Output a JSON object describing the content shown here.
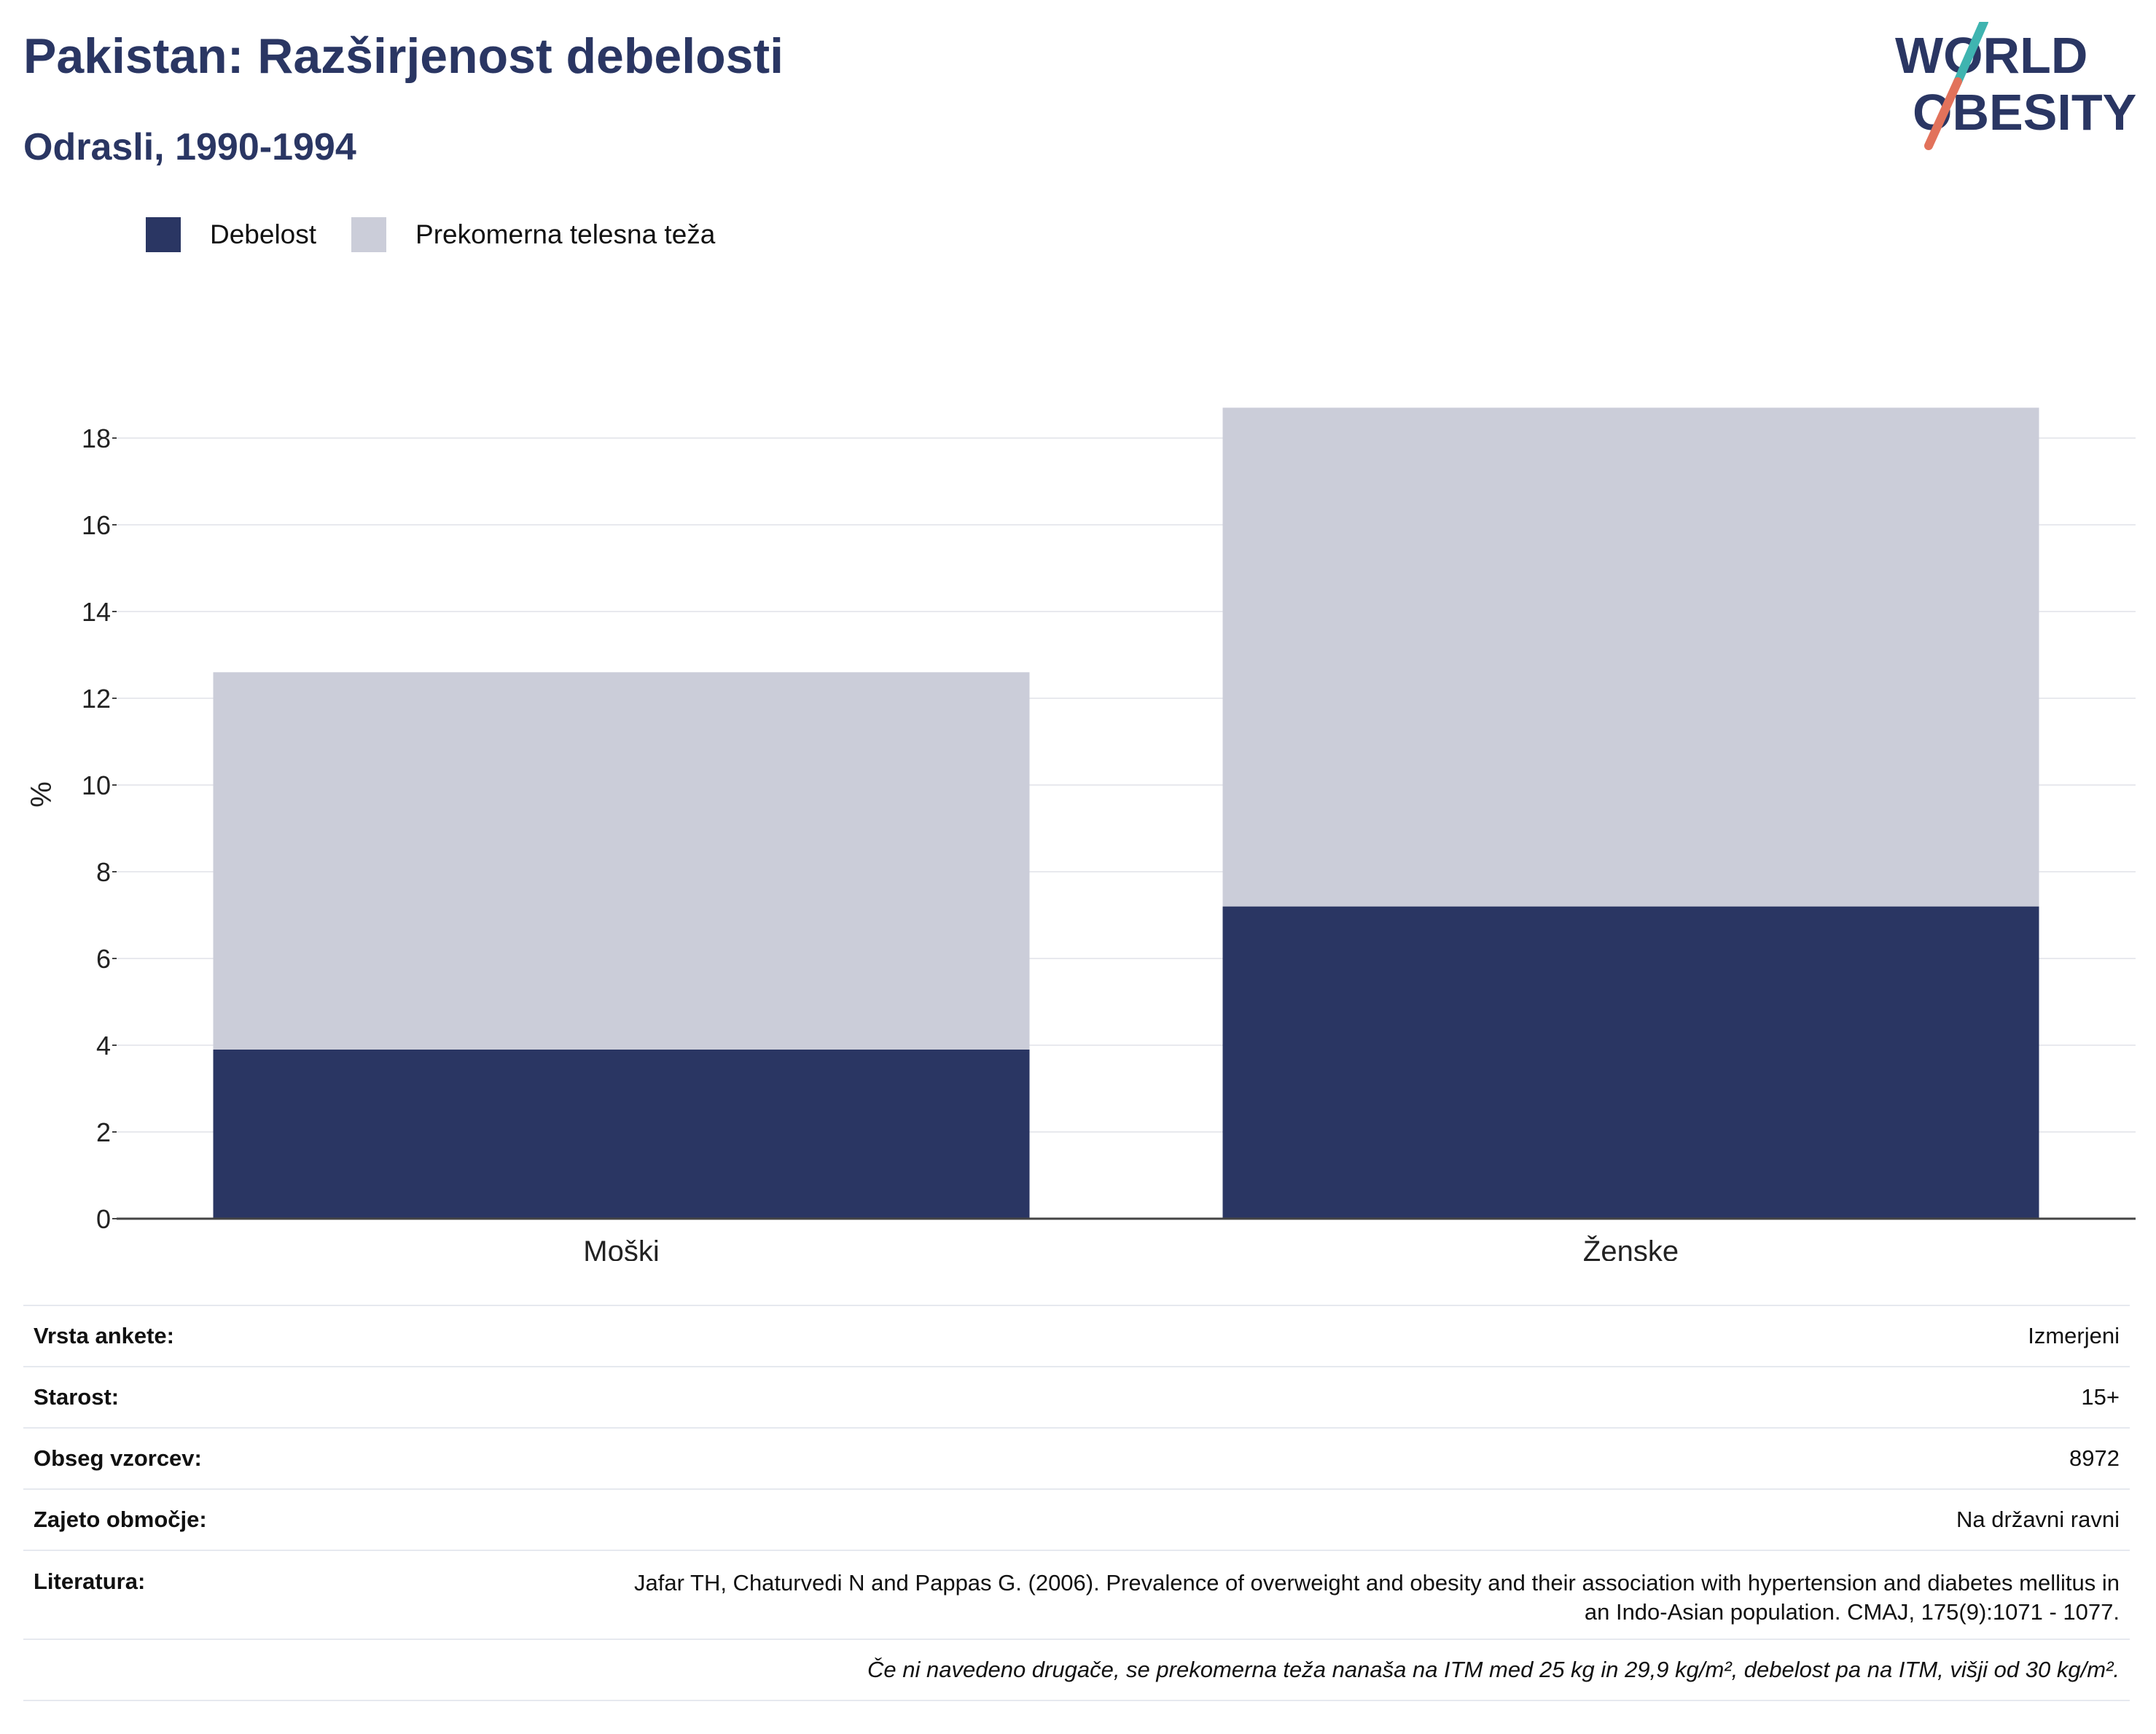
{
  "header": {
    "title": "Pakistan: Razširjenost debelosti",
    "subtitle": "Odrasli, 1990-1994"
  },
  "logo": {
    "line1": "WORLD",
    "line2": "OBESITY"
  },
  "colors": {
    "obesity": "#2a3663",
    "overweight": "#cbcdd9",
    "text": "#2a3663",
    "logo_teal": "#3fb4b0",
    "logo_coral": "#e2725b"
  },
  "legend": [
    {
      "label": "Debelost",
      "color": "#2a3663"
    },
    {
      "label": "Prekomerna telesna teža",
      "color": "#cbcdd9"
    }
  ],
  "chart_data": {
    "type": "bar",
    "stacked": true,
    "categories": [
      "Moški",
      "Ženske"
    ],
    "series": [
      {
        "name": "Debelost",
        "values": [
          3.9,
          7.2
        ]
      },
      {
        "name": "Prekomerna telesna teža",
        "values": [
          8.7,
          11.5
        ]
      }
    ],
    "totals": [
      12.6,
      18.7
    ],
    "ylabel": "%",
    "xlabel": "",
    "ylim": [
      0,
      19
    ],
    "yticks": [
      0,
      2,
      4,
      6,
      8,
      10,
      12,
      14,
      16,
      18
    ],
    "grid": true,
    "legend_position": "top-left"
  },
  "info": {
    "survey_type": {
      "label": "Vrsta ankete:",
      "value": "Izmerjeni"
    },
    "age": {
      "label": "Starost:",
      "value": "15+"
    },
    "sample_size": {
      "label": "Obseg vzorcev:",
      "value": "8972"
    },
    "area": {
      "label": "Zajeto območje:",
      "value": "Na državni ravni"
    },
    "reference": {
      "label": "Literatura:",
      "value": "Jafar TH, Chaturvedi N and Pappas G. (2006). Prevalence of overweight and obesity and their association with hypertension and diabetes mellitus in an Indo-Asian population. CMAJ, 175(9):1071 - 1077."
    },
    "note": "Če ni navedeno drugače, se prekomerna teža nanaša na ITM med 25 kg in 29,9 kg/m², debelost pa na ITM, višji od 30 kg/m²."
  }
}
